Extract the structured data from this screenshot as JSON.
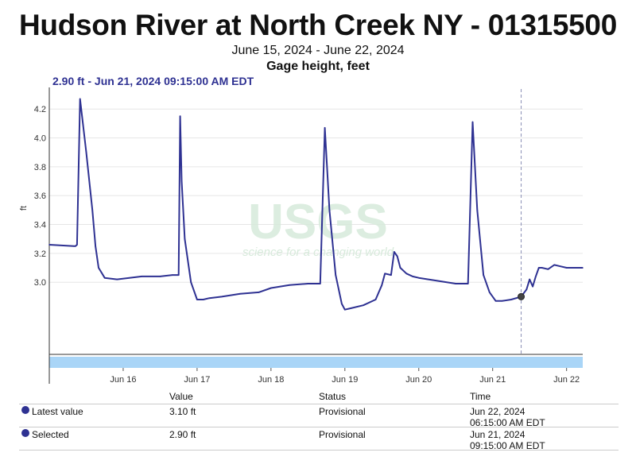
{
  "header": {
    "title": "Hudson River at North Creek NY - 01315500",
    "date_range": "June 15, 2024 - June 22, 2024",
    "parameter": "Gage height, feet"
  },
  "selection_label": "2.90 ft - Jun 21, 2024 09:15:00 AM EDT",
  "watermark": {
    "logo": "USGS",
    "tagline": "science for a changing world"
  },
  "colors": {
    "series": "#2e3192",
    "brush": "#a9d5f7",
    "grid": "#e6e6e6"
  },
  "chart_data": {
    "type": "line",
    "title": "Hudson River at North Creek NY - 01315500",
    "ylabel": "ft",
    "xlabel": "",
    "xlim": [
      "2024-06-15T00:00",
      "2024-06-22T05:15"
    ],
    "ylim": [
      2.5,
      4.35
    ],
    "y_ticks": [
      3.0,
      3.2,
      3.4,
      3.6,
      3.8,
      4.0,
      4.2
    ],
    "y_tick_labels": [
      "3.0",
      "3.2",
      "3.4",
      "3.6",
      "3.8",
      "4.0",
      "4.2"
    ],
    "x_ticks": [
      "2024-06-16T00:00",
      "2024-06-17T00:00",
      "2024-06-18T00:00",
      "2024-06-19T00:00",
      "2024-06-20T00:00",
      "2024-06-21T00:00",
      "2024-06-22T00:00"
    ],
    "x_tick_labels": [
      "Jun 16",
      "Jun 17",
      "Jun 18",
      "Jun 19",
      "Jun 20",
      "Jun 21",
      "Jun 22"
    ],
    "grid": true,
    "series": [
      {
        "x": [
          "2024-06-15T00:00",
          "2024-06-15T08:00",
          "2024-06-15T08:30",
          "2024-06-15T09:00",
          "2024-06-15T10:00",
          "2024-06-15T12:00",
          "2024-06-15T14:00",
          "2024-06-15T15:00",
          "2024-06-15T16:00",
          "2024-06-15T18:00",
          "2024-06-15T22:00",
          "2024-06-16T06:00",
          "2024-06-16T12:00",
          "2024-06-16T16:00",
          "2024-06-16T18:00",
          "2024-06-16T18:30",
          "2024-06-16T19:00",
          "2024-06-16T20:00",
          "2024-06-16T22:00",
          "2024-06-17T00:00",
          "2024-06-17T02:00",
          "2024-06-17T04:00",
          "2024-06-17T08:00",
          "2024-06-17T14:00",
          "2024-06-17T20:00",
          "2024-06-18T00:00",
          "2024-06-18T06:00",
          "2024-06-18T12:00",
          "2024-06-18T15:00",
          "2024-06-18T16:00",
          "2024-06-18T17:30",
          "2024-06-18T19:00",
          "2024-06-18T21:00",
          "2024-06-18T23:00",
          "2024-06-19T00:00",
          "2024-06-19T02:00",
          "2024-06-19T06:00",
          "2024-06-19T10:00",
          "2024-06-19T12:00",
          "2024-06-19T13:00",
          "2024-06-19T15:00",
          "2024-06-19T16:00",
          "2024-06-19T17:00",
          "2024-06-19T18:00",
          "2024-06-19T19:00",
          "2024-06-19T20:00",
          "2024-06-19T22:00",
          "2024-06-20T00:00",
          "2024-06-20T06:00",
          "2024-06-20T12:00",
          "2024-06-20T15:00",
          "2024-06-20T16:00",
          "2024-06-20T17:30",
          "2024-06-20T19:00",
          "2024-06-20T21:00",
          "2024-06-20T23:00",
          "2024-06-21T01:00",
          "2024-06-21T03:00",
          "2024-06-21T06:00",
          "2024-06-21T09:15",
          "2024-06-21T11:00",
          "2024-06-21T12:00",
          "2024-06-21T13:00",
          "2024-06-21T14:00",
          "2024-06-21T15:00",
          "2024-06-21T16:00",
          "2024-06-21T18:00",
          "2024-06-21T20:00",
          "2024-06-21T22:00",
          "2024-06-22T00:00",
          "2024-06-22T03:00",
          "2024-06-22T05:15"
        ],
        "y": [
          3.26,
          3.25,
          3.25,
          3.26,
          4.27,
          3.9,
          3.5,
          3.25,
          3.1,
          3.03,
          3.02,
          3.04,
          3.04,
          3.05,
          3.05,
          4.15,
          3.7,
          3.3,
          3.0,
          2.88,
          2.88,
          2.89,
          2.9,
          2.92,
          2.93,
          2.96,
          2.98,
          2.99,
          2.99,
          2.99,
          4.07,
          3.5,
          3.05,
          2.85,
          2.81,
          2.82,
          2.84,
          2.88,
          2.98,
          3.06,
          3.05,
          3.21,
          3.18,
          3.1,
          3.08,
          3.06,
          3.04,
          3.03,
          3.01,
          2.99,
          2.99,
          2.99,
          4.11,
          3.5,
          3.05,
          2.93,
          2.87,
          2.87,
          2.88,
          2.9,
          2.95,
          3.02,
          2.97,
          3.04,
          3.1,
          3.1,
          3.09,
          3.12,
          3.11,
          3.1,
          3.1,
          3.1
        ]
      }
    ],
    "selected_x": "2024-06-21T09:15"
  },
  "table": {
    "headers": {
      "value": "Value",
      "status": "Status",
      "time": "Time"
    },
    "rows": [
      {
        "name": "Latest value",
        "value": "3.10 ft",
        "status": "Provisional",
        "time_date": "Jun 22, 2024",
        "time_clock": "06:15:00 AM EDT"
      },
      {
        "name": "Selected",
        "value": "2.90 ft",
        "status": "Provisional",
        "time_date": "Jun 21, 2024",
        "time_clock": "09:15:00 AM EDT"
      }
    ]
  }
}
